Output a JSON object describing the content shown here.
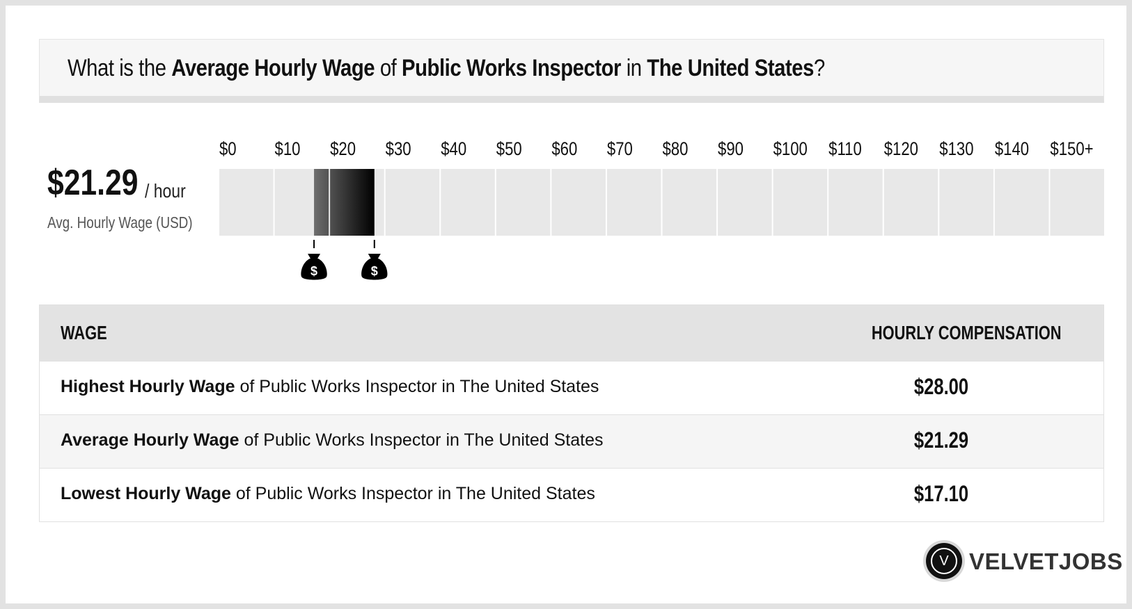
{
  "header": {
    "q_prefix": "What is the ",
    "q_metric": "Average Hourly Wage",
    "q_of": " of ",
    "q_job": "Public Works Inspector",
    "q_in": " in ",
    "q_location": "The United States",
    "q_suffix": "?"
  },
  "summary": {
    "value": "$21.29",
    "unit": "/ hour",
    "label": "Avg. Hourly Wage (USD)"
  },
  "chart_data": {
    "type": "bar",
    "orientation": "horizontal-range",
    "x_tick_labels": [
      "$0",
      "$10",
      "$20",
      "$30",
      "$40",
      "$50",
      "$60",
      "$70",
      "$80",
      "$90",
      "$100",
      "$110",
      "$120",
      "$130",
      "$140",
      "$150+"
    ],
    "xlim": [
      0,
      150
    ],
    "range": {
      "low": 17.1,
      "average": 21.29,
      "high": 28.0
    },
    "markers": [
      {
        "value": 17.1,
        "icon": "money-bag-icon"
      },
      {
        "value": 28.0,
        "icon": "money-bag-icon"
      }
    ],
    "colors": {
      "track": "#e8e8e8",
      "fill_dark": "#000000",
      "fill_light": "#6e6e6e"
    }
  },
  "table": {
    "col_wage": "WAGE",
    "col_comp": "HOURLY COMPENSATION",
    "rows": [
      {
        "bold": "Highest Hourly Wage",
        "rest": " of Public Works Inspector in The United States",
        "value": "$28.00"
      },
      {
        "bold": "Average Hourly Wage",
        "rest": " of Public Works Inspector in The United States",
        "value": "$21.29"
      },
      {
        "bold": "Lowest Hourly Wage",
        "rest": " of Public Works Inspector in The United States",
        "value": "$17.10"
      }
    ]
  },
  "brand": {
    "logo_letter": "V",
    "name": "VELVETJOBS"
  }
}
